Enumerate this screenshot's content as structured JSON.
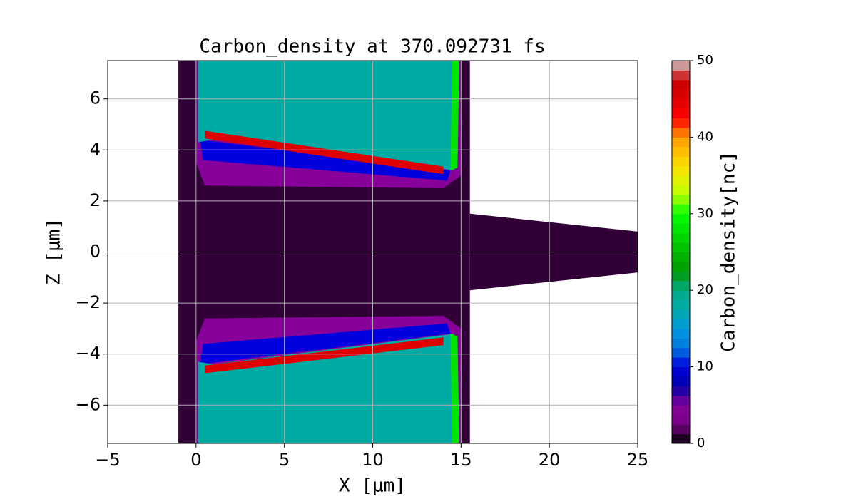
{
  "chart_data": {
    "type": "contour",
    "title": "Carbon_density at 370.092731 fs",
    "x_label": "X [μm]",
    "y_label": "Z [μm]",
    "colorbar_label": "Carbon_density[nc]",
    "colormap": "nipy_spectral",
    "grid": true,
    "xlim": [
      -5,
      25
    ],
    "ylim": [
      -7.5,
      7.5
    ],
    "xticks": [
      {
        "value": -5,
        "label": "−5"
      },
      0,
      5,
      10,
      15,
      20,
      25
    ],
    "yticks": [
      {
        "value": -6,
        "label": "−6"
      },
      {
        "value": -4,
        "label": "−4"
      },
      {
        "value": -2,
        "label": "−2"
      },
      0,
      2,
      4,
      6
    ],
    "clim": [
      0,
      50
    ],
    "cticks": [
      0,
      10,
      20,
      30,
      40,
      50
    ],
    "regions": [
      {
        "density": 1,
        "x": [
          -1,
          15.5,
          15.5,
          -1
        ],
        "z": [
          7.5,
          7.5,
          -7.5,
          -7.5
        ]
      },
      {
        "density": 1,
        "x": [
          15.5,
          25,
          25,
          15.5
        ],
        "z": [
          1.5,
          0.8,
          -0.8,
          -1.5
        ]
      },
      {
        "density": 5,
        "x": [
          0,
          15,
          15,
          14,
          0.5,
          0
        ],
        "z": [
          7.5,
          7.5,
          3,
          2.5,
          2.6,
          3.5
        ]
      },
      {
        "density": 5,
        "x": [
          0,
          15,
          15,
          14,
          0.5,
          0
        ],
        "z": [
          -7.5,
          -7.5,
          -3,
          -2.5,
          -2.6,
          -3.5
        ]
      },
      {
        "density": 10,
        "x": [
          0.2,
          14.4,
          14.2,
          0.4
        ],
        "z": [
          4.4,
          3.2,
          2.8,
          3.6
        ]
      },
      {
        "density": 10,
        "x": [
          0.2,
          14.4,
          14.2,
          0.4
        ],
        "z": [
          -4.4,
          -3.2,
          -2.8,
          -3.6
        ]
      },
      {
        "density": 18,
        "x": [
          0.1,
          14.8,
          14.6,
          1,
          0.1
        ],
        "z": [
          7.5,
          7.5,
          3.2,
          4.4,
          4.3
        ]
      },
      {
        "density": 18,
        "x": [
          0.1,
          14.8,
          14.6,
          1,
          0.1
        ],
        "z": [
          -7.5,
          -7.5,
          -3.2,
          -4.4,
          -4.3
        ]
      },
      {
        "density": 45,
        "x": [
          0.5,
          14,
          14,
          0.5
        ],
        "z": [
          4.75,
          3.35,
          3.05,
          4.45
        ]
      },
      {
        "density": 45,
        "x": [
          0.5,
          14,
          14,
          0.5
        ],
        "z": [
          -4.45,
          -3.35,
          -3.65,
          -4.75
        ]
      },
      {
        "density": 28,
        "x": [
          14.4,
          14.8,
          14.9,
          14.5
        ],
        "z": [
          3.2,
          3.3,
          7.5,
          7.5
        ]
      },
      {
        "density": 28,
        "x": [
          14.4,
          14.8,
          14.9,
          14.5
        ],
        "z": [
          -3.2,
          -3.3,
          -7.5,
          -7.5
        ]
      }
    ]
  }
}
